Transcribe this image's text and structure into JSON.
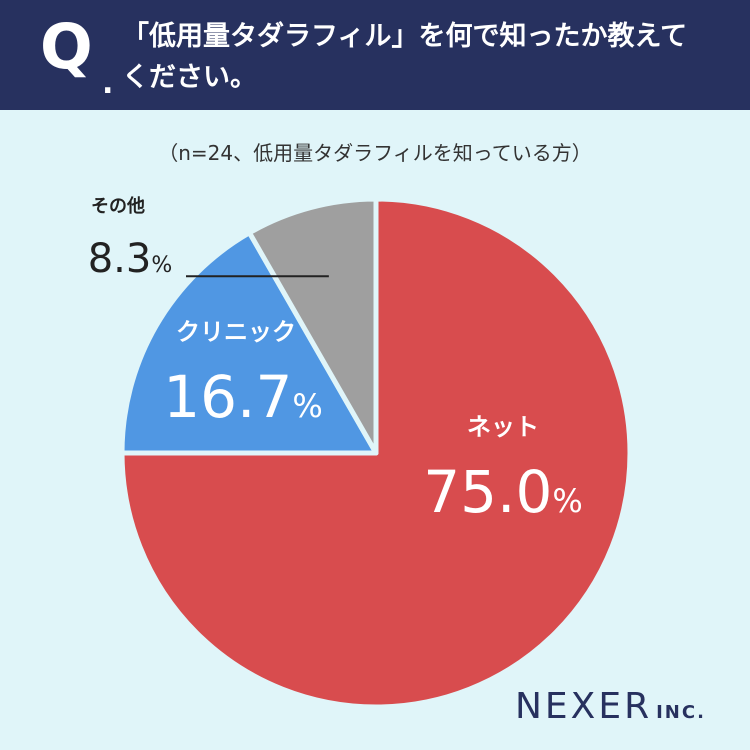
{
  "question": {
    "mark": "Q",
    "dot": ".",
    "line1": "「低用量タダラフィル」を何で知ったか教えて",
    "line2": "ください。"
  },
  "subtitle": "（n=24、低用量タダラフィルを知っている方）",
  "logo": {
    "main": "NEXER",
    "inc": "INC."
  },
  "colors": {
    "header": "#27315f",
    "background": "#e0f5f9",
    "net": "#d84c4e",
    "clinic": "#5097e3",
    "other": "#9f9f9f"
  },
  "chart_data": {
    "type": "pie",
    "title": "「低用量タダラフィル」を何で知ったか教えてください。",
    "subtitle": "（n=24、低用量タダラフィルを知っている方）",
    "slices": [
      {
        "label": "ネット",
        "value": 75.0,
        "display": "75.0",
        "unit": "%",
        "color": "#d84c4e"
      },
      {
        "label": "クリニック",
        "value": 16.7,
        "display": "16.7",
        "unit": "%",
        "color": "#5097e3"
      },
      {
        "label": "その他",
        "value": 8.3,
        "display": "8.3",
        "unit": "%",
        "color": "#9f9f9f"
      }
    ],
    "start": "12 o'clock",
    "direction": "clockwise"
  }
}
